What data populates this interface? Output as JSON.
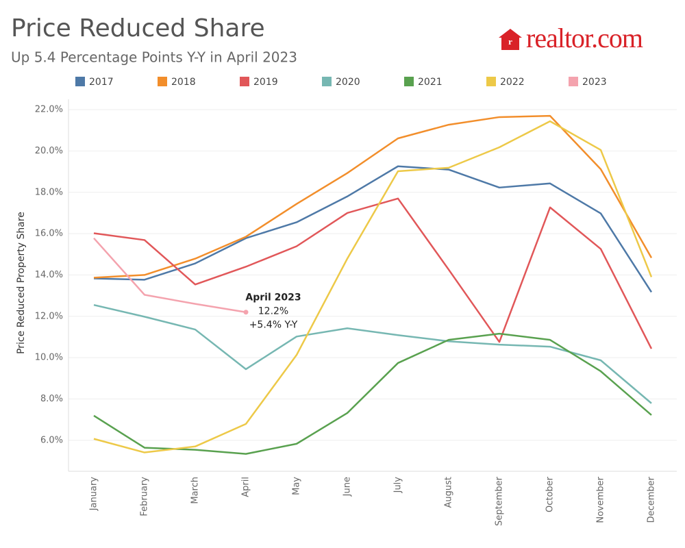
{
  "chart_data": {
    "type": "line",
    "title": "Price Reduced Share",
    "subtitle": "Up 5.4 Percentage Points Y-Y in April 2023",
    "logo": "realtor.com",
    "y_label": "Price Reduced Property Share",
    "categories": [
      "January",
      "February",
      "March",
      "April",
      "May",
      "June",
      "July",
      "August",
      "September",
      "October",
      "November",
      "December"
    ],
    "series": [
      {
        "name": "2017",
        "color": "#4e79a7",
        "values": [
          13.83,
          13.77,
          14.56,
          15.78,
          16.55,
          17.8,
          19.26,
          19.1,
          18.23,
          18.43,
          16.98,
          13.17
        ]
      },
      {
        "name": "2018",
        "color": "#f28e2b",
        "values": [
          13.87,
          14.0,
          14.79,
          15.85,
          17.44,
          18.93,
          20.61,
          21.27,
          21.64,
          21.7,
          19.12,
          14.83
        ]
      },
      {
        "name": "2019",
        "color": "#e15759",
        "values": [
          16.02,
          15.69,
          13.54,
          14.4,
          15.39,
          17.0,
          17.7,
          14.26,
          10.76,
          17.27,
          15.26,
          10.43
        ]
      },
      {
        "name": "2020",
        "color": "#76b7b2",
        "values": [
          12.55,
          11.98,
          11.36,
          9.44,
          11.02,
          11.42,
          11.09,
          10.79,
          10.63,
          10.53,
          9.87,
          7.79
        ]
      },
      {
        "name": "2021",
        "color": "#59a14f",
        "values": [
          7.19,
          5.64,
          5.54,
          5.34,
          5.83,
          7.32,
          9.74,
          10.86,
          11.16,
          10.86,
          9.34,
          7.22
        ]
      },
      {
        "name": "2022",
        "color": "#edc948",
        "values": [
          6.07,
          5.41,
          5.7,
          6.79,
          10.13,
          14.79,
          19.02,
          19.19,
          20.18,
          21.44,
          20.05,
          13.9
        ]
      },
      {
        "name": "2023",
        "color": "#f4a3ae",
        "values": [
          15.78,
          13.04,
          12.6,
          12.2,
          null,
          null,
          null,
          null,
          null,
          null,
          null,
          null
        ]
      }
    ],
    "annotation": {
      "title": "April 2023",
      "value_label": "12.2%",
      "change": "+5.4% Y-Y"
    },
    "ylim": [
      4.5,
      22.5
    ],
    "yticks": [
      {
        "value": 6,
        "label": "6.0%"
      },
      {
        "value": 8,
        "label": "8.0%"
      },
      {
        "value": 10,
        "label": "10.0%"
      },
      {
        "value": 12,
        "label": "12.0%"
      },
      {
        "value": 14,
        "label": "14.0%"
      },
      {
        "value": 16,
        "label": "16.0%"
      },
      {
        "value": 18,
        "label": "18.0%"
      },
      {
        "value": 20,
        "label": "20.0%"
      },
      {
        "value": 22,
        "label": "22.0%"
      }
    ],
    "grid": true
  }
}
